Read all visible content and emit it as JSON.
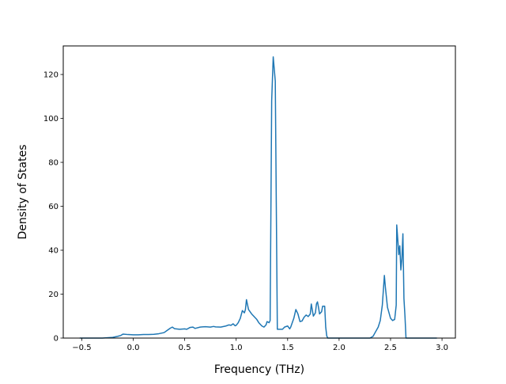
{
  "chart_data": {
    "type": "line",
    "xlabel": "Frequency (THz)",
    "ylabel": "Density of States",
    "xlim": [
      -0.68,
      3.13
    ],
    "ylim": [
      0,
      133
    ],
    "xticks": [
      -0.5,
      0.0,
      0.5,
      1.0,
      1.5,
      2.0,
      2.5,
      3.0
    ],
    "xtick_labels": [
      "−0.5",
      "0.0",
      "0.5",
      "1.0",
      "1.5",
      "2.0",
      "2.5",
      "3.0"
    ],
    "yticks": [
      0,
      20,
      40,
      60,
      80,
      100,
      120
    ],
    "ytick_labels": [
      "0",
      "20",
      "40",
      "60",
      "80",
      "100",
      "120"
    ],
    "grid": false,
    "legend": "none",
    "series": [
      {
        "color": "#1f77b4",
        "x": [
          -0.52,
          -0.4,
          -0.3,
          -0.2,
          -0.15,
          -0.12,
          -0.1,
          -0.05,
          0.0,
          0.05,
          0.1,
          0.15,
          0.2,
          0.25,
          0.3,
          0.33,
          0.36,
          0.38,
          0.4,
          0.45,
          0.5,
          0.52,
          0.55,
          0.58,
          0.6,
          0.65,
          0.7,
          0.75,
          0.78,
          0.8,
          0.85,
          0.9,
          0.93,
          0.95,
          0.97,
          0.99,
          1.0,
          1.02,
          1.04,
          1.06,
          1.08,
          1.09,
          1.1,
          1.12,
          1.15,
          1.18,
          1.2,
          1.22,
          1.25,
          1.27,
          1.29,
          1.3,
          1.32,
          1.33,
          1.345,
          1.36,
          1.38,
          1.39,
          1.4,
          1.43,
          1.45,
          1.47,
          1.5,
          1.52,
          1.53,
          1.56,
          1.58,
          1.6,
          1.62,
          1.64,
          1.66,
          1.68,
          1.7,
          1.72,
          1.73,
          1.75,
          1.77,
          1.78,
          1.79,
          1.8,
          1.81,
          1.83,
          1.84,
          1.86,
          1.87,
          1.88,
          1.89,
          1.9,
          2.0,
          2.1,
          2.2,
          2.3,
          2.33,
          2.35,
          2.38,
          2.4,
          2.42,
          2.44,
          2.45,
          2.47,
          2.5,
          2.52,
          2.54,
          2.555,
          2.56,
          2.57,
          2.58,
          2.59,
          2.6,
          2.61,
          2.62,
          2.63,
          2.64,
          2.65,
          2.66,
          2.7,
          2.8,
          2.95
        ],
        "y": [
          0,
          0,
          0,
          0.3,
          0.8,
          1.2,
          1.8,
          1.6,
          1.5,
          1.5,
          1.6,
          1.6,
          1.7,
          2.0,
          2.5,
          3.5,
          4.5,
          5.0,
          4.3,
          4.0,
          4.2,
          4.0,
          4.8,
          5.0,
          4.4,
          5.0,
          5.2,
          5.0,
          5.3,
          5.1,
          5.0,
          5.5,
          6.0,
          5.8,
          6.5,
          5.6,
          5.8,
          7.0,
          9.0,
          12.5,
          11.5,
          13.0,
          17.5,
          13.0,
          11.0,
          9.5,
          8.5,
          7.0,
          5.5,
          5.0,
          6.0,
          7.5,
          7.0,
          8.0,
          108.0,
          128.0,
          117.0,
          60.0,
          4.0,
          4.0,
          4.0,
          5.0,
          5.5,
          4.2,
          5.0,
          9.0,
          13.0,
          11.0,
          7.5,
          7.8,
          9.5,
          10.5,
          9.8,
          11.0,
          15.5,
          10.0,
          11.5,
          15.5,
          16.5,
          14.0,
          11.0,
          12.0,
          14.5,
          14.5,
          5.0,
          1.0,
          0,
          0,
          0,
          0,
          0,
          0,
          0.8,
          2.5,
          5.0,
          8.0,
          15.0,
          28.5,
          23.0,
          14.0,
          9.0,
          8.0,
          8.5,
          15.0,
          51.5,
          45.0,
          38.0,
          42.0,
          31.0,
          36.0,
          47.5,
          18.0,
          10.0,
          0,
          0,
          0,
          0,
          0
        ]
      }
    ]
  }
}
